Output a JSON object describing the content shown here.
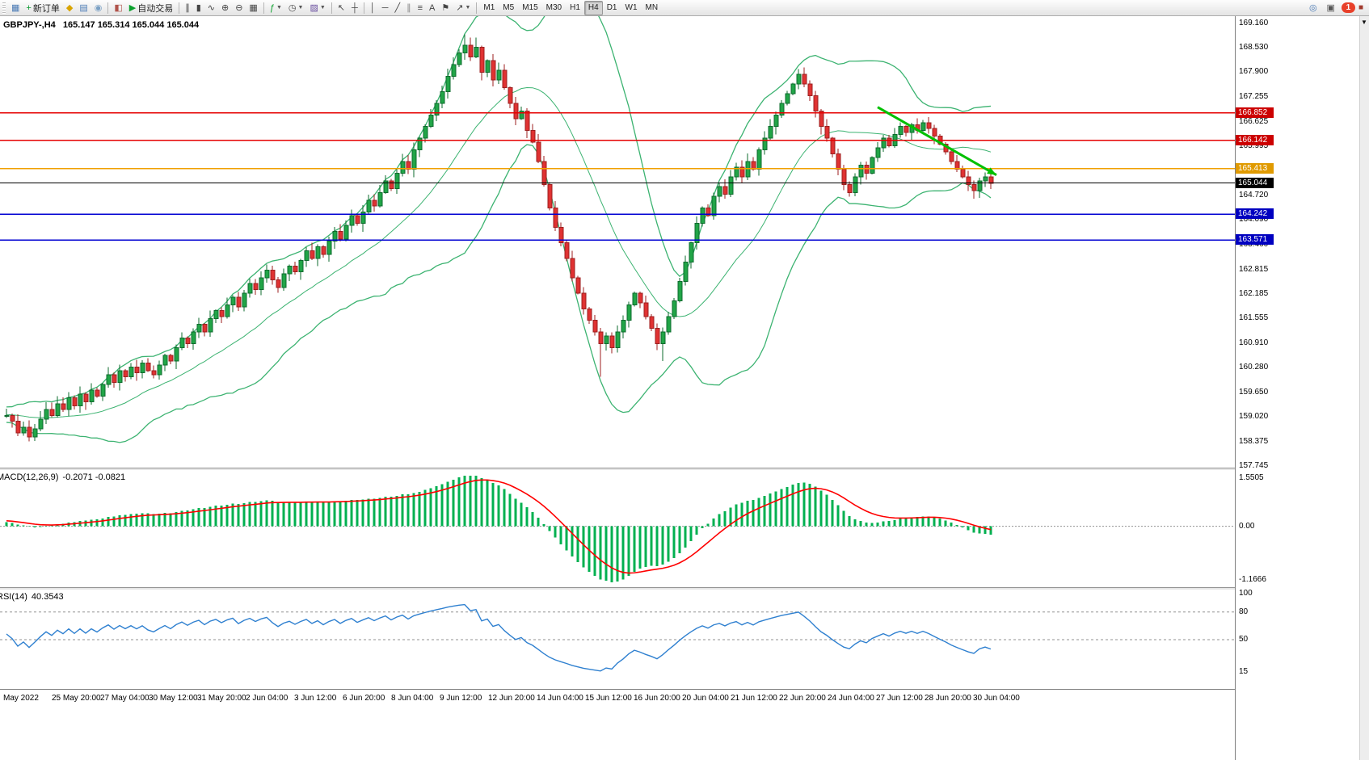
{
  "toolbar": {
    "groups": [
      {
        "buttons": [
          {
            "name": "charts-toolbar-icon",
            "glyph": "▦",
            "color": "#4a7ab5"
          },
          {
            "name": "new-order-button",
            "glyph": "+",
            "color": "#089a2e",
            "label": "新订单"
          },
          {
            "name": "market-watch-button",
            "glyph": "◆",
            "color": "#d9a400"
          },
          {
            "name": "data-window-button",
            "glyph": "▤",
            "color": "#4a7ab5"
          },
          {
            "name": "navigator-button",
            "glyph": "◉",
            "color": "#7aa0c4"
          }
        ]
      },
      {
        "sep": true
      },
      {
        "buttons": [
          {
            "name": "terminal-button",
            "glyph": "◧",
            "color": "#b0534a"
          },
          {
            "name": "autotrading-button",
            "glyph": "▶",
            "color": "#0aa02c",
            "label": "自动交易"
          }
        ]
      },
      {
        "sep": true
      },
      {
        "buttons": [
          {
            "name": "bar-chart-button",
            "glyph": "∥",
            "color": "#444"
          },
          {
            "name": "candlestick-chart-button",
            "glyph": "▮",
            "color": "#444"
          },
          {
            "name": "line-chart-button",
            "glyph": "∿",
            "color": "#444"
          },
          {
            "name": "zoom-in-button",
            "glyph": "⊕",
            "color": "#444"
          },
          {
            "name": "zoom-out-button",
            "glyph": "⊖",
            "color": "#444"
          },
          {
            "name": "tile-windows-button",
            "glyph": "▦",
            "color": "#444"
          }
        ]
      },
      {
        "sep": true
      },
      {
        "buttons": [
          {
            "name": "indicators-button",
            "glyph": "ƒ",
            "color": "#0aa02c",
            "dropdown": true
          },
          {
            "name": "periods-button",
            "glyph": "◷",
            "color": "#444",
            "dropdown": true
          },
          {
            "name": "templates-button",
            "glyph": "▨",
            "color": "#6a4fa0",
            "dropdown": true
          }
        ]
      },
      {
        "sep": true
      },
      {
        "buttons": [
          {
            "name": "cursor-button",
            "glyph": "↖",
            "color": "#444"
          },
          {
            "name": "crosshair-button",
            "glyph": "┼",
            "color": "#444"
          }
        ]
      },
      {
        "sep": true
      },
      {
        "buttons": [
          {
            "name": "vertical-line-button",
            "glyph": "│",
            "color": "#444"
          },
          {
            "name": "horizontal-line-button",
            "glyph": "─",
            "color": "#444"
          },
          {
            "name": "trendline-button",
            "glyph": "╱",
            "color": "#444"
          },
          {
            "name": "equidistant-channel-button",
            "glyph": "∥",
            "color": "#888"
          },
          {
            "name": "fibonacci-button",
            "glyph": "≡",
            "color": "#444"
          },
          {
            "name": "text-button",
            "glyph": "A",
            "color": "#444"
          },
          {
            "name": "label-button",
            "glyph": "⚑",
            "color": "#444"
          },
          {
            "name": "arrows-button",
            "glyph": "↗",
            "color": "#444",
            "dropdown": true
          }
        ]
      },
      {
        "sep": true
      }
    ],
    "timeframes": [
      "M1",
      "M5",
      "M15",
      "M30",
      "H1",
      "H4",
      "D1",
      "W1",
      "MN"
    ],
    "active_timeframe": "H4",
    "right_buttons": [
      {
        "name": "community-button",
        "glyph": "◎",
        "color": "#4a7ab5"
      },
      {
        "name": "help-button",
        "glyph": "▣",
        "color": "#555"
      }
    ],
    "notification_count": "1",
    "corner_icon": {
      "name": "connection-icon",
      "glyph": "■",
      "color": "#a23b2e"
    }
  },
  "chart": {
    "symbol_period": "GBPJPY-,H4",
    "ohlc": "165.147 165.314 165.044 165.044",
    "price_axis": {
      "labels": [
        "169.160",
        "168.530",
        "167.900",
        "167.255",
        "166.625",
        "165.995",
        "165.365",
        "164.720",
        "164.090",
        "163.460",
        "162.815",
        "162.185",
        "161.555",
        "160.910",
        "160.280",
        "159.650",
        "159.020",
        "158.375",
        "157.745"
      ]
    },
    "levels": [
      {
        "label": "166.852",
        "price": 166.852,
        "line": "#e60000",
        "bg": "#cc0000"
      },
      {
        "label": "166.142",
        "price": 166.142,
        "line": "#e60000",
        "bg": "#cc0000"
      },
      {
        "label": "165.413",
        "price": 165.413,
        "line": "#f0a000",
        "bg": "#e09a00"
      },
      {
        "label": "165.044",
        "price": 165.044,
        "line": "#000000",
        "bg": "#000000",
        "kind": "bid"
      },
      {
        "label": "164.242",
        "price": 164.242,
        "line": "#0000d2",
        "bg": "#0000c0"
      },
      {
        "label": "163.571",
        "price": 163.571,
        "line": "#0000d2",
        "bg": "#0000c0"
      }
    ],
    "trend_arrow": {
      "from_index": 154,
      "from_price": 167.0,
      "to_index": 175,
      "to_price": 165.25,
      "color": "#00c000",
      "width": 3
    },
    "scroll_marker": "▼"
  },
  "colors": {
    "up": "#21a547",
    "up_border": "#0c6b2c",
    "down": "#e03232",
    "down_border": "#9c1f1f",
    "bollinger": "#3cb371",
    "macd_hist": "#00b050",
    "macd_signal": "#ff0000",
    "rsi": "#2f80d0"
  },
  "chart_data": {
    "type": "candlestick",
    "symbol": "GBPJPY-",
    "timeframe": "H4",
    "warmup_closes": [
      158.3,
      158.5,
      158.4,
      158.6,
      158.5,
      158.7,
      158.6,
      158.8,
      158.7,
      158.9,
      158.8,
      159.0,
      158.9,
      159.1,
      159.0,
      158.9,
      159.1,
      159.0,
      159.2,
      159.1,
      159.0,
      159.2,
      159.1,
      159.3,
      159.2,
      159.1,
      159.0,
      159.1,
      159.0,
      159.05
    ],
    "closes": [
      159.05,
      158.9,
      158.6,
      158.75,
      158.5,
      158.7,
      158.95,
      159.2,
      159.05,
      159.35,
      159.2,
      159.5,
      159.3,
      159.6,
      159.4,
      159.7,
      159.55,
      159.85,
      160.1,
      159.9,
      160.2,
      160.05,
      160.3,
      160.15,
      160.4,
      160.2,
      160.1,
      160.35,
      160.6,
      160.45,
      160.8,
      161.05,
      160.9,
      161.2,
      161.4,
      161.2,
      161.55,
      161.75,
      161.6,
      161.9,
      162.1,
      161.85,
      162.2,
      162.45,
      162.3,
      162.6,
      162.8,
      162.55,
      162.35,
      162.7,
      162.9,
      162.75,
      163.05,
      163.3,
      163.1,
      163.4,
      163.2,
      163.55,
      163.8,
      163.6,
      163.95,
      164.2,
      164.0,
      164.3,
      164.6,
      164.45,
      164.8,
      165.1,
      164.9,
      165.3,
      165.6,
      165.4,
      165.9,
      166.2,
      166.5,
      166.8,
      167.1,
      167.4,
      167.8,
      168.1,
      168.4,
      168.6,
      168.3,
      168.55,
      167.9,
      168.2,
      167.7,
      167.95,
      167.5,
      167.1,
      166.7,
      166.9,
      166.4,
      166.1,
      165.6,
      165.0,
      164.4,
      163.9,
      163.5,
      163.1,
      162.6,
      162.2,
      161.8,
      161.5,
      161.2,
      160.9,
      161.1,
      160.8,
      161.2,
      161.5,
      161.9,
      162.2,
      161.95,
      161.6,
      161.3,
      160.9,
      161.2,
      161.6,
      162.0,
      162.5,
      163.0,
      163.5,
      164.0,
      164.4,
      164.2,
      164.7,
      164.95,
      164.75,
      165.2,
      165.45,
      165.2,
      165.6,
      165.4,
      165.9,
      166.2,
      166.5,
      166.8,
      167.1,
      167.35,
      167.6,
      167.85,
      167.6,
      167.3,
      166.9,
      166.5,
      166.2,
      165.8,
      165.4,
      165.0,
      164.8,
      165.2,
      165.5,
      165.3,
      165.7,
      165.95,
      166.2,
      166.0,
      166.3,
      166.5,
      166.35,
      166.55,
      166.4,
      166.6,
      166.45,
      166.25,
      166.05,
      165.85,
      165.6,
      165.4,
      165.2,
      165.0,
      164.85,
      165.1,
      165.2,
      165.04
    ],
    "spikes": [
      {
        "i": 4,
        "low": 158.38
      },
      {
        "i": 81,
        "high": 168.88
      },
      {
        "i": 83,
        "high": 168.8
      },
      {
        "i": 105,
        "low": 160.05
      },
      {
        "i": 116,
        "low": 160.45
      },
      {
        "i": 140,
        "high": 167.98
      }
    ],
    "indicators": {
      "bollinger": {
        "period": 20,
        "deviation": 2
      },
      "macd": {
        "label": "MACD(12,26,9)",
        "values": "-0.2071 -0.0821",
        "axis_labels": [
          "1.5505",
          "0.00",
          "-1.1666"
        ],
        "max": 1.5505,
        "min": -1.1666
      },
      "rsi": {
        "label": "RSI(14)",
        "value": "40.3543",
        "axis_labels": [
          100,
          80,
          50,
          15
        ],
        "levels": [
          80,
          50
        ]
      }
    },
    "time_axis": [
      "May 2022",
      "25 May 20:00",
      "27 May 04:00",
      "30 May 12:00",
      "31 May 20:00",
      "2 Jun 04:00",
      "3 Jun 12:00",
      "6 Jun 20:00",
      "8 Jun 04:00",
      "9 Jun 12:00",
      "12 Jun 20:00",
      "14 Jun 04:00",
      "15 Jun 12:00",
      "16 Jun 20:00",
      "20 Jun 04:00",
      "21 Jun 12:00",
      "22 Jun 20:00",
      "24 Jun 04:00",
      "27 Jun 12:00",
      "28 Jun 20:00",
      "30 Jun 04:00"
    ]
  }
}
